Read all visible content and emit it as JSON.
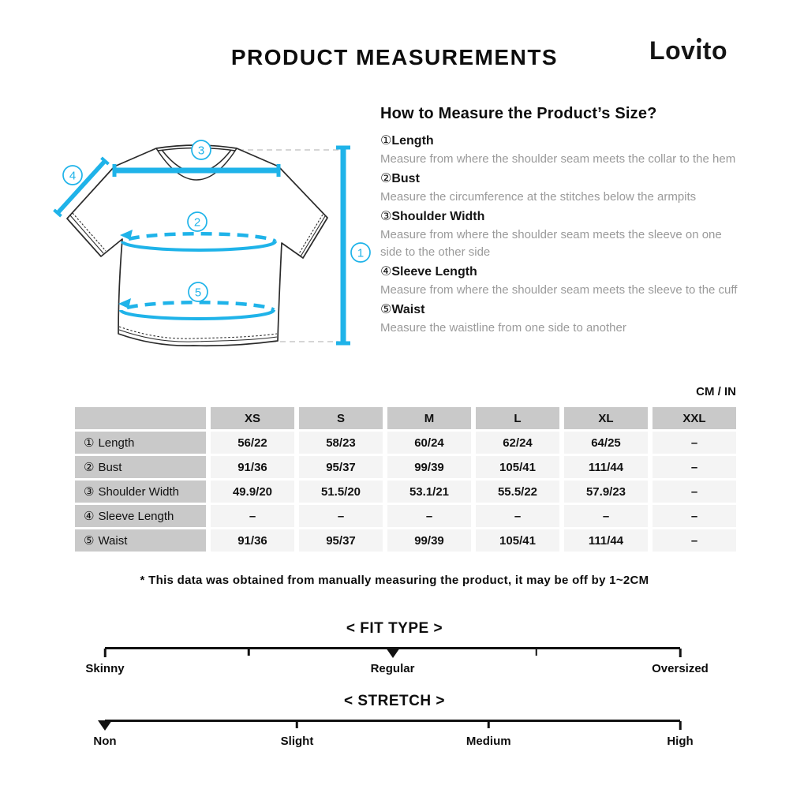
{
  "header": {
    "title": "PRODUCT MEASUREMENTS",
    "brand": "Lovito",
    "brand_parts": {
      "pre": "Lov",
      "i": "ı",
      "post": "to"
    }
  },
  "diagram": {
    "callouts": {
      "length": "1",
      "bust": "2",
      "shoulder": "3",
      "sleeve": "4",
      "waist": "5"
    }
  },
  "how_to": {
    "heading": "How to Measure the Product’s Size?",
    "items": [
      {
        "num": "①",
        "label": "Length",
        "desc": "Measure from where the shoulder seam meets the collar to the hem"
      },
      {
        "num": "②",
        "label": "Bust",
        "desc": "Measure the circumference at the stitches below the armpits"
      },
      {
        "num": "③",
        "label": "Shoulder Width",
        "desc": "Measure from where the shoulder seam meets the sleeve on one side to the other side"
      },
      {
        "num": "④",
        "label": "Sleeve Length",
        "desc": "Measure from where the shoulder seam meets the sleeve to the cuff"
      },
      {
        "num": "⑤",
        "label": "Waist",
        "desc": "Measure the waistline from one side to another"
      }
    ]
  },
  "table": {
    "unit_label": "CM / IN",
    "columns": [
      "XS",
      "S",
      "M",
      "L",
      "XL",
      "XXL"
    ],
    "rows": [
      {
        "num": "①",
        "label": "Length",
        "values": [
          "56/22",
          "58/23",
          "60/24",
          "62/24",
          "64/25",
          "–"
        ]
      },
      {
        "num": "②",
        "label": "Bust",
        "values": [
          "91/36",
          "95/37",
          "99/39",
          "105/41",
          "111/44",
          "–"
        ]
      },
      {
        "num": "③",
        "label": "Shoulder Width",
        "values": [
          "49.9/20",
          "51.5/20",
          "53.1/21",
          "55.5/22",
          "57.9/23",
          "–"
        ]
      },
      {
        "num": "④",
        "label": "Sleeve Length",
        "values": [
          "–",
          "–",
          "–",
          "–",
          "–",
          "–"
        ]
      },
      {
        "num": "⑤",
        "label": "Waist",
        "values": [
          "91/36",
          "95/37",
          "99/39",
          "105/41",
          "111/44",
          "–"
        ]
      }
    ]
  },
  "footnote": "* This data was obtained from manually measuring the product, it may be off by 1~2CM",
  "scales": [
    {
      "title": "< FIT TYPE >",
      "selected": "Regular",
      "marker_percent": 50,
      "labels": [
        "Skinny",
        "Regular",
        "Oversized"
      ],
      "label_percents": [
        0,
        50,
        100
      ]
    },
    {
      "title": "< STRETCH >",
      "selected": "Non",
      "marker_percent": 0,
      "labels": [
        "Non",
        "Slight",
        "Medium",
        "High"
      ],
      "label_percents": [
        0,
        33.4,
        66.7,
        100
      ]
    }
  ],
  "colors": {
    "accent_cyan": "#1fb3e9",
    "table_header_bg": "#c9c9c9",
    "table_cell_bg": "#f4f4f4",
    "muted_text": "#9a9a9a",
    "dash_gray": "#c9c9c9",
    "ink": "#111111"
  }
}
